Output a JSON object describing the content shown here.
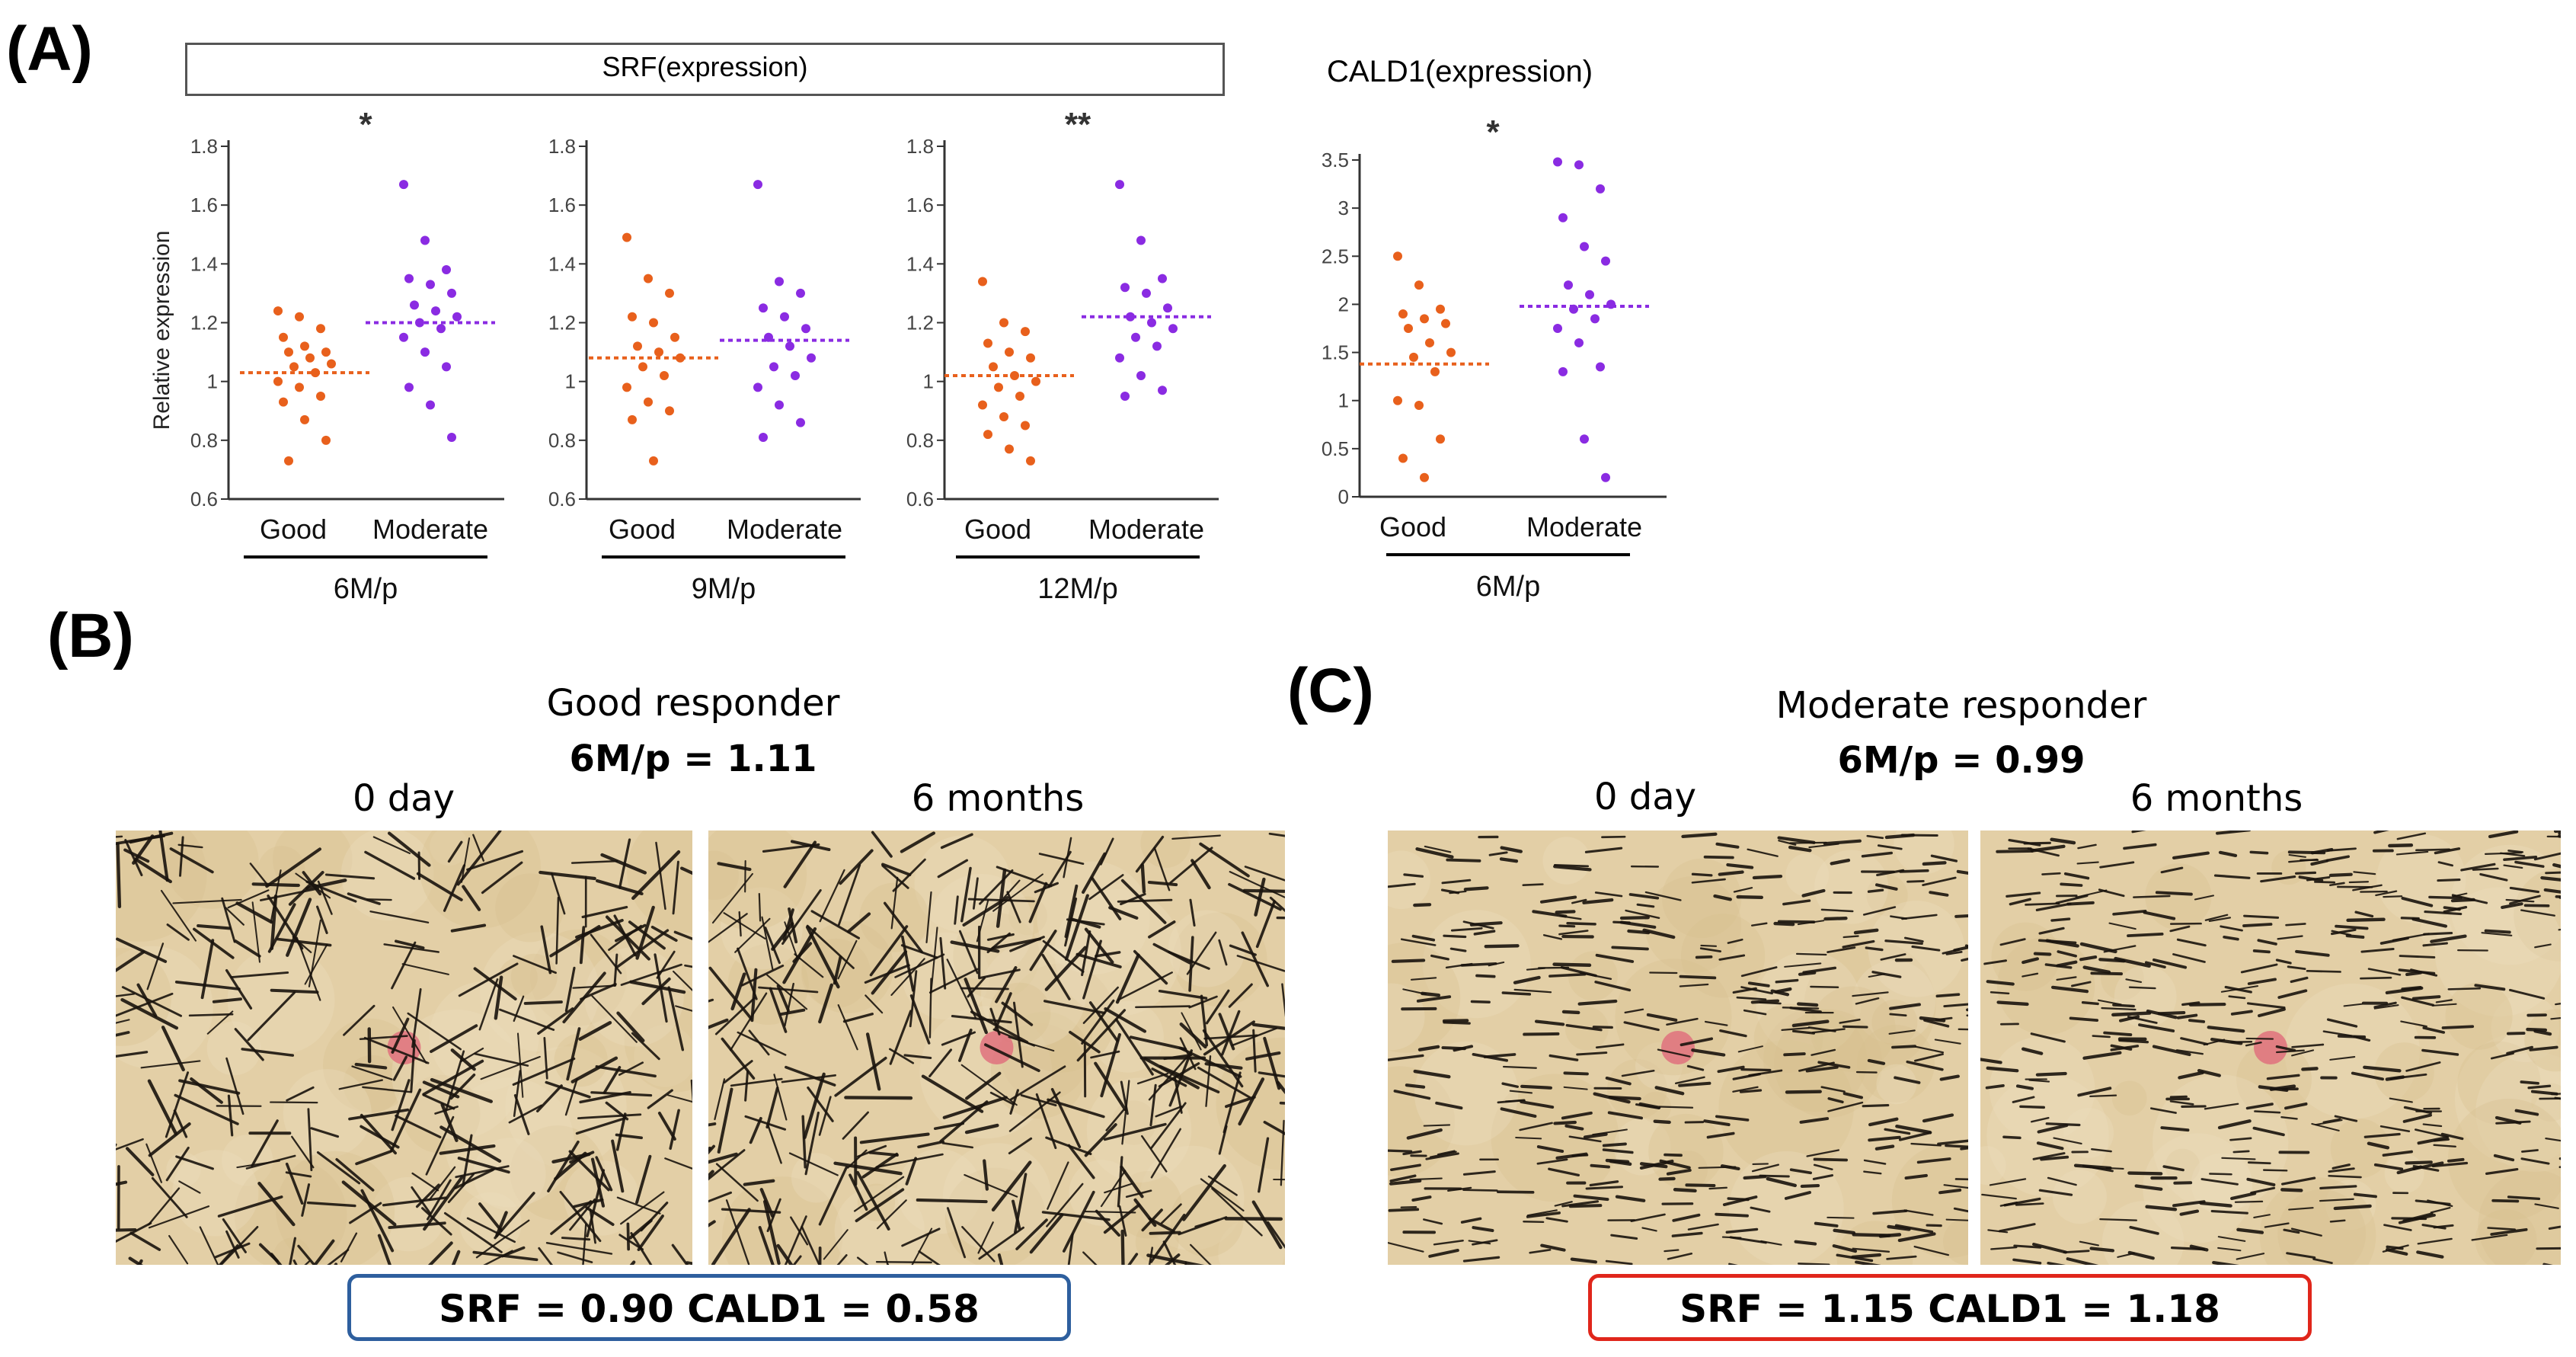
{
  "panels": {
    "a": "(A)",
    "b": "(B)",
    "c": "(C)"
  },
  "srf_title": "SRF(expression)",
  "cald1_title": "CALD1(expression)",
  "colors": {
    "good": "#e8601c",
    "moderate": "#8a2be2",
    "axis": "#333333",
    "box_blue": "#2e5f9e",
    "box_red": "#e0261b"
  },
  "chart_data": [
    {
      "type": "scatter",
      "title": "SRF(expression)",
      "ylabel": "Relative expression",
      "ylim": [
        0.6,
        1.8
      ],
      "yticks": [
        "0.6",
        "0.8",
        "1",
        "1.2",
        "1.4",
        "1.6",
        "1.8"
      ],
      "categories": [
        "Good",
        "Moderate"
      ],
      "group_label": "6M/p",
      "significance": "*",
      "series": [
        {
          "name": "Good",
          "values": [
            1.24,
            1.22,
            1.18,
            1.15,
            1.12,
            1.1,
            1.1,
            1.08,
            1.06,
            1.05,
            1.03,
            1.0,
            0.98,
            0.95,
            0.93,
            0.87,
            0.8,
            0.73
          ],
          "mean": 1.03
        },
        {
          "name": "Moderate",
          "values": [
            1.67,
            1.48,
            1.38,
            1.35,
            1.33,
            1.3,
            1.26,
            1.24,
            1.22,
            1.2,
            1.18,
            1.15,
            1.1,
            1.05,
            0.98,
            0.92,
            0.81
          ],
          "mean": 1.2
        }
      ]
    },
    {
      "type": "scatter",
      "ylim": [
        0.6,
        1.8
      ],
      "yticks": [
        "0.6",
        "0.8",
        "1",
        "1.2",
        "1.4",
        "1.6",
        "1.8"
      ],
      "categories": [
        "Good",
        "Moderate"
      ],
      "group_label": "9M/p",
      "significance": "",
      "series": [
        {
          "name": "Good",
          "values": [
            1.49,
            1.35,
            1.3,
            1.22,
            1.2,
            1.15,
            1.12,
            1.1,
            1.08,
            1.05,
            1.02,
            0.98,
            0.93,
            0.9,
            0.87,
            0.73
          ],
          "mean": 1.08
        },
        {
          "name": "Moderate",
          "values": [
            1.67,
            1.34,
            1.3,
            1.25,
            1.22,
            1.18,
            1.15,
            1.12,
            1.08,
            1.05,
            1.02,
            0.98,
            0.92,
            0.86,
            0.81
          ],
          "mean": 1.14
        }
      ]
    },
    {
      "type": "scatter",
      "ylim": [
        0.6,
        1.8
      ],
      "yticks": [
        "0.6",
        "0.8",
        "1",
        "1.2",
        "1.4",
        "1.6",
        "1.8"
      ],
      "categories": [
        "Good",
        "Moderate"
      ],
      "group_label": "12M/p",
      "significance": "**",
      "series": [
        {
          "name": "Good",
          "values": [
            1.34,
            1.2,
            1.17,
            1.13,
            1.1,
            1.08,
            1.05,
            1.02,
            1.0,
            0.98,
            0.95,
            0.92,
            0.88,
            0.85,
            0.82,
            0.77,
            0.73
          ],
          "mean": 1.02
        },
        {
          "name": "Moderate",
          "values": [
            1.67,
            1.48,
            1.35,
            1.32,
            1.3,
            1.25,
            1.22,
            1.2,
            1.18,
            1.15,
            1.12,
            1.08,
            1.02,
            0.97,
            0.95
          ],
          "mean": 1.22
        }
      ]
    },
    {
      "type": "scatter",
      "title": "CALD1(expression)",
      "ylim": [
        0,
        3.5
      ],
      "yticks": [
        "0",
        "0.5",
        "1",
        "1.5",
        "2",
        "2.5",
        "3",
        "3.5"
      ],
      "categories": [
        "Good",
        "Moderate"
      ],
      "group_label": "6M/p",
      "significance": "*",
      "series": [
        {
          "name": "Good",
          "values": [
            2.5,
            2.2,
            1.95,
            1.9,
            1.85,
            1.8,
            1.75,
            1.6,
            1.5,
            1.45,
            1.3,
            1.0,
            0.95,
            0.6,
            0.4,
            0.2
          ],
          "mean": 1.38
        },
        {
          "name": "Moderate",
          "values": [
            3.48,
            3.45,
            3.2,
            2.9,
            2.6,
            2.45,
            2.2,
            2.1,
            2.0,
            1.95,
            1.85,
            1.75,
            1.6,
            1.35,
            1.3,
            0.6,
            0.2
          ],
          "mean": 1.98
        }
      ]
    }
  ],
  "panel_b": {
    "title": "Good responder",
    "subtitle": "6M/p = 1.11",
    "label_left": "0 day",
    "label_right": "6 months",
    "values": "SRF = 0.90   CALD1 = 0.58"
  },
  "panel_c": {
    "title": "Moderate responder",
    "subtitle": "6M/p = 0.99",
    "label_left": "0 day",
    "label_right": "6 months",
    "values": "SRF = 1.15   CALD1 = 1.18"
  }
}
